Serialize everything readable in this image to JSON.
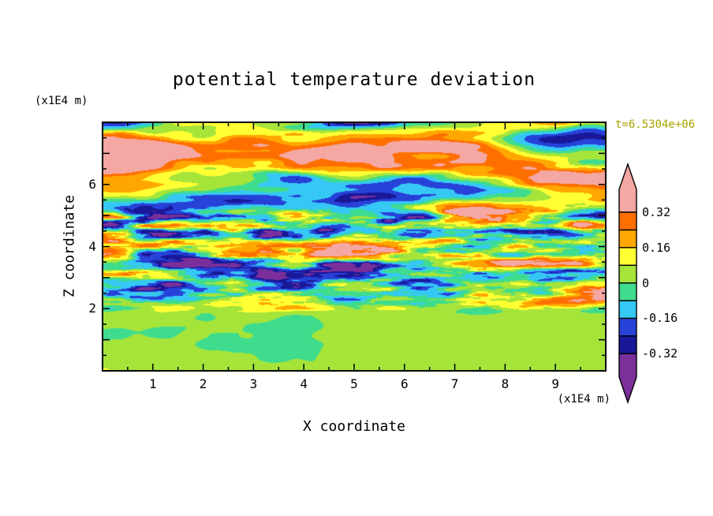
{
  "figure": {
    "title": "potential temperature deviation",
    "time_label": "t=6.5304e+06",
    "x_axis_label": "X coordinate",
    "z_axis_label": "Z coordinate",
    "x_unit_label": "(x1E4 m)",
    "z_unit_label": "(x1E4 m)",
    "colors": {
      "background": "#ffffff",
      "axis": "#000000",
      "text": "#000000",
      "time_label": "#a8a400"
    }
  },
  "chart_data": {
    "type": "heatmap",
    "subtype": "filled-contour",
    "title": "potential temperature deviation",
    "xlabel": "X coordinate",
    "ylabel": "Z coordinate",
    "x_unit": "(x1E4 m)",
    "y_unit": "(x1E4 m)",
    "time_annotation": "t=6.5304e+06",
    "xlim": [
      0,
      10
    ],
    "ylim": [
      0,
      8
    ],
    "x_ticks": [
      1,
      2,
      3,
      4,
      5,
      6,
      7,
      8,
      9
    ],
    "y_ticks": [
      2,
      4,
      6
    ],
    "grid": false,
    "legend_position": "right-colorbar",
    "contour_interval": 0.08,
    "levels": [
      -0.32,
      -0.24,
      -0.16,
      -0.08,
      0,
      0.08,
      0.16,
      0.24,
      0.32
    ],
    "band_colors_low_to_high": [
      "#7b2f9b",
      "#181899",
      "#2742d8",
      "#35c8f5",
      "#3fdc8e",
      "#a6e43a",
      "#ffff33",
      "#ffa700",
      "#ff6f00",
      "#f4a7a3"
    ],
    "colorbar_ticks": [
      {
        "text": "0.32",
        "value": 0.32
      },
      {
        "text": "0.16",
        "value": 0.16
      },
      {
        "text": "0",
        "value": 0
      },
      {
        "text": "-0.16",
        "value": -0.16
      },
      {
        "text": "-0.32",
        "value": -0.32
      }
    ],
    "colorbar_arrows": {
      "above_max_color": "#f4a7a3",
      "below_min_color": "#7b2f9b"
    },
    "field_structure": [
      {
        "z_range": [
          0,
          2
        ],
        "description": "smooth weakly-perturbed layer, values near 0: broad spring-green and chartreuse patches"
      },
      {
        "z_range": [
          2,
          5
        ],
        "description": "fine-scale horizontally-stretched turbulent streaks spanning full range: cyan/navy/yellow/orange/green filaments"
      },
      {
        "z_range": [
          5,
          8
        ],
        "description": "large-amplitude braided wave layers: dominant salmon (> 0.32) interleaved with purple (< -0.32) bands rimmed by orange/yellow"
      }
    ]
  }
}
